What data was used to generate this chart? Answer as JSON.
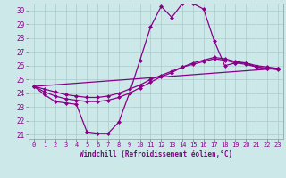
{
  "bg_color": "#cce8e8",
  "line_color": "#880088",
  "grid_color": "#aacccc",
  "xlabel": "Windchill (Refroidissement éolien,°C)",
  "ylim": [
    20.7,
    30.5
  ],
  "xlim": [
    -0.5,
    23.5
  ],
  "yticks": [
    21,
    22,
    23,
    24,
    25,
    26,
    27,
    28,
    29,
    30
  ],
  "xticks": [
    0,
    1,
    2,
    3,
    4,
    5,
    6,
    7,
    8,
    9,
    10,
    11,
    12,
    13,
    14,
    15,
    16,
    17,
    18,
    19,
    20,
    21,
    22,
    23
  ],
  "curve1_x": [
    0,
    1,
    2,
    3,
    4,
    5,
    6,
    7,
    8,
    9,
    10,
    11,
    12,
    13,
    14,
    15,
    16,
    17,
    18,
    19,
    20,
    21,
    22,
    23
  ],
  "curve1_y": [
    24.5,
    23.9,
    23.4,
    23.3,
    23.2,
    21.2,
    21.1,
    21.1,
    21.9,
    24.0,
    26.4,
    28.8,
    30.3,
    29.5,
    30.5,
    30.5,
    30.1,
    27.8,
    26.0,
    26.2,
    26.2,
    25.9,
    25.8,
    25.7
  ],
  "curve2_x": [
    0,
    1,
    2,
    3,
    4,
    5,
    6,
    7,
    8,
    9,
    10,
    11,
    12,
    13,
    14,
    15,
    16,
    17,
    18,
    19,
    20,
    21,
    22,
    23
  ],
  "curve2_y": [
    24.5,
    24.1,
    23.8,
    23.6,
    23.5,
    23.4,
    23.4,
    23.5,
    23.7,
    24.0,
    24.4,
    24.8,
    25.2,
    25.5,
    25.9,
    26.2,
    26.4,
    26.6,
    26.5,
    26.3,
    26.2,
    26.0,
    25.9,
    25.8
  ],
  "curve3_x": [
    0,
    23
  ],
  "curve3_y": [
    24.5,
    25.8
  ],
  "curve4_x": [
    0,
    1,
    2,
    3,
    4,
    5,
    6,
    7,
    8,
    9,
    10,
    11,
    12,
    13,
    14,
    15,
    16,
    17,
    18,
    19,
    20,
    21,
    22,
    23
  ],
  "curve4_y": [
    24.5,
    24.3,
    24.1,
    23.9,
    23.8,
    23.7,
    23.7,
    23.8,
    24.0,
    24.3,
    24.6,
    25.0,
    25.3,
    25.6,
    25.9,
    26.1,
    26.3,
    26.5,
    26.4,
    26.2,
    26.1,
    25.9,
    25.8,
    25.8
  ]
}
